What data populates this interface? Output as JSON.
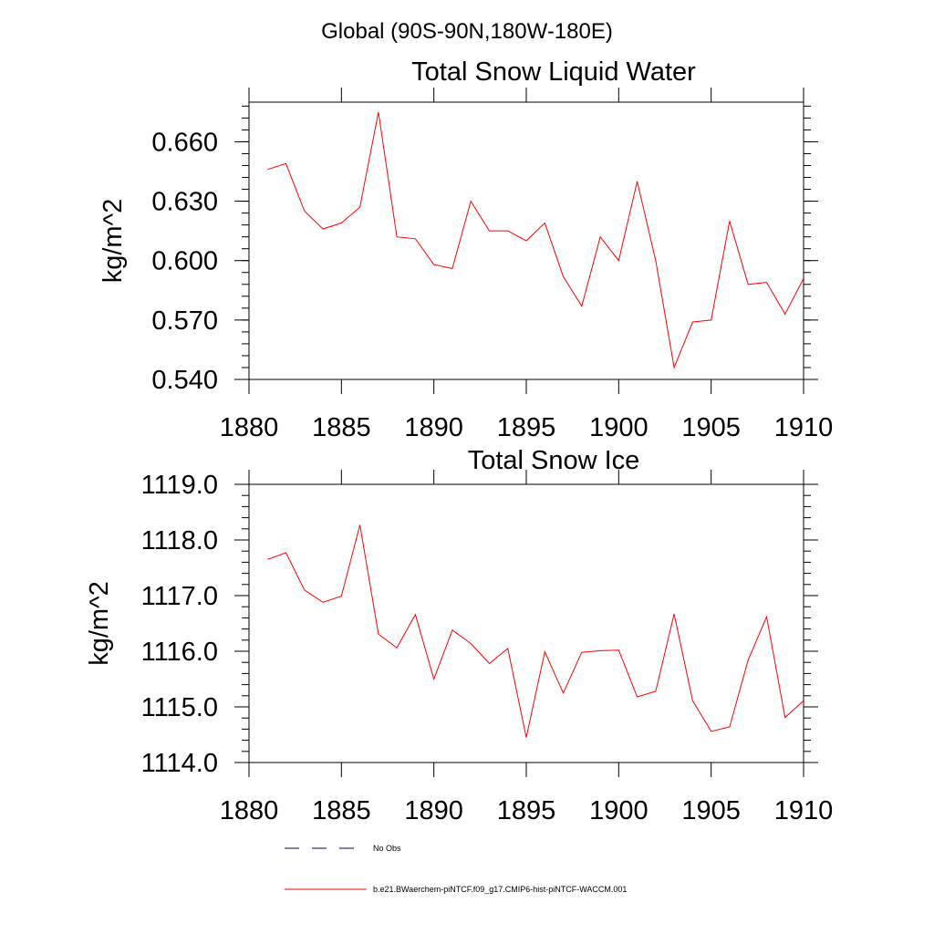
{
  "page_title": "Global (90S-90N,180W-180E)",
  "chart_data": [
    {
      "type": "line",
      "title": "Total Snow Liquid Water",
      "xlabel": "",
      "ylabel": "kg/m^2",
      "xlim": [
        1880,
        1910
      ],
      "ylim": [
        0.54,
        0.68
      ],
      "grid": false,
      "x_ticks": [
        1880,
        1885,
        1890,
        1895,
        1900,
        1905,
        1910
      ],
      "x_tick_labels": [
        "1880",
        "1885",
        "1890",
        "1895",
        "1900",
        "1905",
        "1910"
      ],
      "y_ticks": [
        0.54,
        0.57,
        0.6,
        0.63,
        0.66
      ],
      "y_tick_labels": [
        "0.540",
        "0.570",
        "0.600",
        "0.630",
        "0.660"
      ],
      "x": [
        1881,
        1882,
        1883,
        1884,
        1885,
        1886,
        1887,
        1888,
        1889,
        1890,
        1891,
        1892,
        1893,
        1894,
        1895,
        1896,
        1897,
        1898,
        1899,
        1900,
        1901,
        1902,
        1903,
        1904,
        1905,
        1906,
        1907,
        1908,
        1909,
        1910
      ],
      "series": [
        {
          "name": "b.e21.BWaerchem-piNTCF.f09_g17.CMIP6-hist-piNTCF-WACCM.001",
          "color": "#ff0000",
          "values": [
            0.646,
            0.649,
            0.625,
            0.616,
            0.619,
            0.627,
            0.675,
            0.612,
            0.611,
            0.598,
            0.596,
            0.63,
            0.615,
            0.615,
            0.61,
            0.619,
            0.592,
            0.577,
            0.612,
            0.6,
            0.64,
            0.6,
            0.546,
            0.569,
            0.57,
            0.62,
            0.588,
            0.589,
            0.573,
            0.591
          ]
        }
      ]
    },
    {
      "type": "line",
      "title": "Total Snow Ice",
      "xlabel": "",
      "ylabel": "kg/m^2",
      "xlim": [
        1880,
        1910
      ],
      "ylim": [
        1114.0,
        1119.0
      ],
      "grid": false,
      "x_ticks": [
        1880,
        1885,
        1890,
        1895,
        1900,
        1905,
        1910
      ],
      "x_tick_labels": [
        "1880",
        "1885",
        "1890",
        "1895",
        "1900",
        "1905",
        "1910"
      ],
      "y_ticks": [
        1114.0,
        1115.0,
        1116.0,
        1117.0,
        1118.0,
        1119.0
      ],
      "y_tick_labels": [
        "1114.0",
        "1115.0",
        "1116.0",
        "1117.0",
        "1118.0",
        "1119.0"
      ],
      "x": [
        1881,
        1882,
        1883,
        1884,
        1885,
        1886,
        1887,
        1888,
        1889,
        1890,
        1891,
        1892,
        1893,
        1894,
        1895,
        1896,
        1897,
        1898,
        1899,
        1900,
        1901,
        1902,
        1903,
        1904,
        1905,
        1906,
        1907,
        1908,
        1909,
        1910
      ],
      "series": [
        {
          "name": "b.e21.BWaerchem-piNTCF.f09_g17.CMIP6-hist-piNTCF-WACCM.001",
          "color": "#ff0000",
          "values": [
            1117.65,
            1117.77,
            1117.1,
            1116.88,
            1116.99,
            1118.27,
            1116.31,
            1116.06,
            1116.66,
            1115.5,
            1116.38,
            1116.14,
            1115.78,
            1116.05,
            1114.45,
            1115.99,
            1115.25,
            1115.98,
            1116.01,
            1116.02,
            1115.18,
            1115.28,
            1116.67,
            1115.11,
            1114.56,
            1114.64,
            1115.84,
            1116.62,
            1114.81,
            1115.11
          ]
        }
      ]
    }
  ],
  "legend": {
    "placement": "bottom",
    "items": [
      {
        "label": "No Obs",
        "color": "#000080",
        "style": "dashed"
      },
      {
        "label": "b.e21.BWaerchem-piNTCF.f09_g17.CMIP6-hist-piNTCF-WACCM.001",
        "color": "#ff0000",
        "style": "solid"
      }
    ]
  }
}
